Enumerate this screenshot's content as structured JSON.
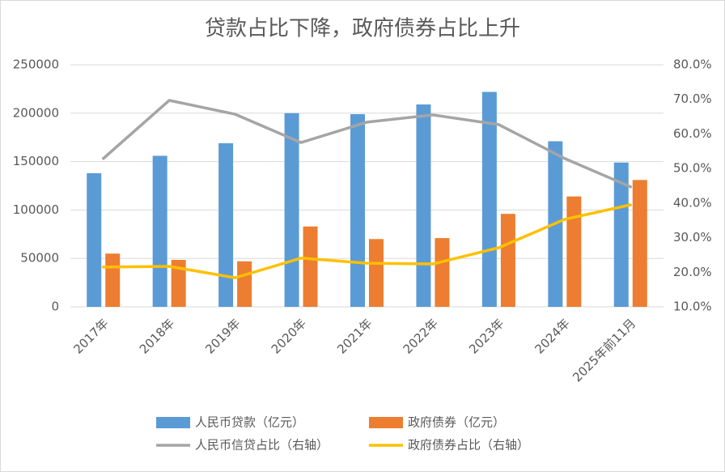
{
  "chart_data": {
    "type": "bar",
    "title": "贷款占比下降，政府债券占比上升",
    "categories": [
      "2017年",
      "2018年",
      "2019年",
      "2020年",
      "2021年",
      "2022年",
      "2023年",
      "2024年",
      "2025年前11月"
    ],
    "series": [
      {
        "name": "人民币贷款（亿元）",
        "type": "bar",
        "color": "#5b9bd5",
        "values": [
          138000,
          156000,
          169000,
          200000,
          199000,
          209000,
          222000,
          171000,
          149000
        ]
      },
      {
        "name": "政府债券（亿元）",
        "type": "bar",
        "color": "#ed7d31",
        "values": [
          55000,
          48500,
          47000,
          83000,
          70000,
          71000,
          96000,
          114000,
          131000
        ]
      },
      {
        "name": "人民币信贷占比（右轴）",
        "type": "line",
        "axis": "y2",
        "color": "#a5a5a5",
        "values": [
          52.9,
          69.7,
          65.7,
          57.5,
          63.4,
          65.5,
          62.7,
          52.9,
          44.7
        ]
      },
      {
        "name": "政府债券占比（右轴）",
        "type": "line",
        "axis": "y2",
        "color": "#ffc000",
        "values": [
          21.5,
          21.7,
          18.4,
          24.1,
          22.6,
          22.4,
          27.1,
          35.3,
          39.5
        ]
      }
    ],
    "ylim": [
      0,
      250000
    ],
    "yticks": [
      0,
      50000,
      100000,
      150000,
      200000,
      250000
    ],
    "y2lim": [
      10,
      80
    ],
    "y2ticks": [
      {
        "value": 10,
        "label": "10.0%"
      },
      {
        "value": 20,
        "label": "20.0%"
      },
      {
        "value": 30,
        "label": "30.0%"
      },
      {
        "value": 40,
        "label": "40.0%"
      },
      {
        "value": 50,
        "label": "50.0%"
      },
      {
        "value": 60,
        "label": "60.0%"
      },
      {
        "value": 70,
        "label": "70.0%"
      },
      {
        "value": 80,
        "label": "80.0%"
      }
    ],
    "grid": true
  }
}
